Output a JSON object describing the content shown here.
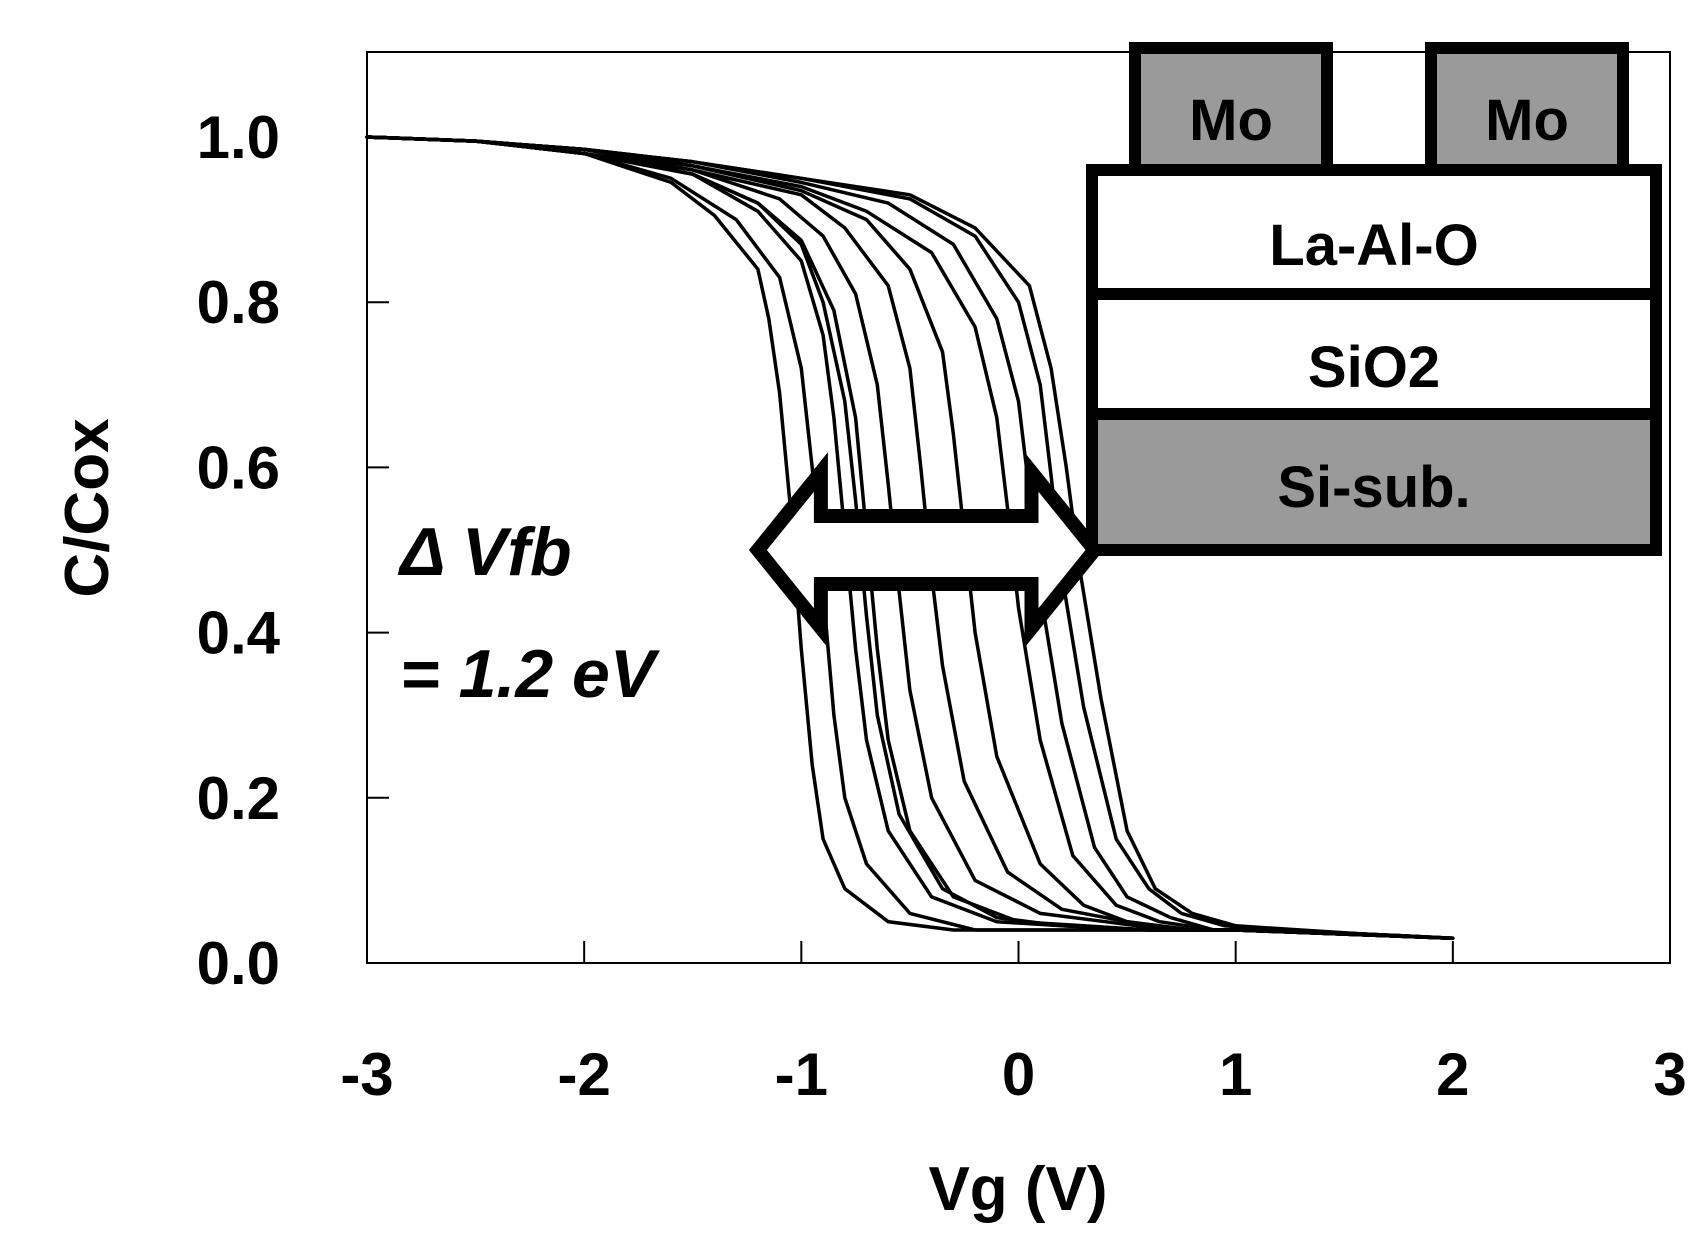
{
  "chart_data": {
    "type": "line",
    "title": "",
    "xlabel": "Vg (V)",
    "ylabel": "C/Cox",
    "xlim": [
      -3,
      3
    ],
    "ylim": [
      0,
      1.1
    ],
    "xticks": [
      "-3",
      "-2",
      "-1",
      "0",
      "1",
      "2",
      "3"
    ],
    "yticks": [
      "0.0",
      "0.2",
      "0.4",
      "0.6",
      "0.8",
      "1.0"
    ],
    "grid": false,
    "legend": "none",
    "annotation": {
      "line1": "Δ Vfb",
      "line2": "= 1.2 eV",
      "arrow_from_x": -1.2,
      "arrow_to_x": 0.35,
      "arrow_y": 0.5
    },
    "inset": {
      "gates": [
        "Mo",
        "Mo"
      ],
      "layers": [
        {
          "label": "La-Al-O",
          "fill": "#ffffff"
        },
        {
          "label": "SiO2",
          "fill": "#ffffff"
        },
        {
          "label": "Si-sub.",
          "fill": "#9a9a9a"
        }
      ],
      "gate_fill": "#9a9a9a"
    },
    "series": [
      {
        "x": [
          -3,
          -2.5,
          -2,
          -1.6,
          -1.4,
          -1.2,
          -1.15,
          -1.1,
          -1.05,
          -1.0,
          -0.95,
          -0.9,
          -0.8,
          -0.6,
          -0.3,
          0,
          0.5,
          1,
          1.5,
          2
        ],
        "y": [
          1.0,
          0.995,
          0.98,
          0.945,
          0.905,
          0.84,
          0.78,
          0.69,
          0.55,
          0.38,
          0.24,
          0.15,
          0.09,
          0.05,
          0.04,
          0.04,
          0.04,
          0.04,
          0.035,
          0.03
        ]
      },
      {
        "x": [
          -3,
          -2.5,
          -2,
          -1.6,
          -1.3,
          -1.1,
          -1.0,
          -0.95,
          -0.9,
          -0.85,
          -0.8,
          -0.7,
          -0.5,
          -0.2,
          0,
          0.5,
          1,
          1.5,
          2
        ],
        "y": [
          1.0,
          0.995,
          0.98,
          0.95,
          0.9,
          0.83,
          0.72,
          0.6,
          0.45,
          0.3,
          0.2,
          0.12,
          0.06,
          0.04,
          0.04,
          0.04,
          0.04,
          0.035,
          0.03
        ]
      },
      {
        "x": [
          -3,
          -2.5,
          -2,
          -1.5,
          -1.2,
          -1.0,
          -0.9,
          -0.85,
          -0.8,
          -0.75,
          -0.7,
          -0.6,
          -0.4,
          -0.1,
          0.2,
          0.6,
          1,
          1.5,
          2
        ],
        "y": [
          1.0,
          0.995,
          0.98,
          0.955,
          0.91,
          0.85,
          0.76,
          0.66,
          0.52,
          0.38,
          0.27,
          0.16,
          0.08,
          0.05,
          0.045,
          0.04,
          0.04,
          0.035,
          0.03
        ]
      },
      {
        "x": [
          -3,
          -2.5,
          -2,
          -1.5,
          -1.2,
          -1.0,
          -0.9,
          -0.8,
          -0.75,
          -0.7,
          -0.65,
          -0.55,
          -0.35,
          -0.1,
          0.2,
          0.6,
          1,
          1.5,
          2
        ],
        "y": [
          1.0,
          0.995,
          0.98,
          0.955,
          0.92,
          0.87,
          0.8,
          0.68,
          0.56,
          0.42,
          0.3,
          0.18,
          0.09,
          0.055,
          0.045,
          0.04,
          0.04,
          0.035,
          0.03
        ]
      },
      {
        "x": [
          -3,
          -2.5,
          -2,
          -1.5,
          -1.2,
          -1.0,
          -0.85,
          -0.75,
          -0.7,
          -0.65,
          -0.6,
          -0.5,
          -0.3,
          0,
          0.3,
          0.6,
          1,
          1.5,
          2
        ],
        "y": [
          1.0,
          0.995,
          0.98,
          0.955,
          0.92,
          0.875,
          0.79,
          0.66,
          0.52,
          0.38,
          0.27,
          0.16,
          0.08,
          0.05,
          0.045,
          0.04,
          0.04,
          0.035,
          0.03
        ]
      },
      {
        "x": [
          -3,
          -2.5,
          -2,
          -1.5,
          -1.1,
          -0.9,
          -0.75,
          -0.65,
          -0.6,
          -0.55,
          -0.5,
          -0.4,
          -0.2,
          0.1,
          0.4,
          0.7,
          1,
          1.5,
          2
        ],
        "y": [
          1.0,
          0.995,
          0.98,
          0.96,
          0.925,
          0.88,
          0.81,
          0.7,
          0.58,
          0.45,
          0.33,
          0.2,
          0.1,
          0.06,
          0.05,
          0.04,
          0.04,
          0.035,
          0.03
        ]
      },
      {
        "x": [
          -3,
          -2.5,
          -2,
          -1.5,
          -1.0,
          -0.8,
          -0.6,
          -0.5,
          -0.45,
          -0.4,
          -0.35,
          -0.25,
          -0.05,
          0.2,
          0.5,
          0.8,
          1,
          1.5,
          2
        ],
        "y": [
          1.0,
          0.995,
          0.985,
          0.96,
          0.93,
          0.89,
          0.82,
          0.72,
          0.6,
          0.47,
          0.36,
          0.22,
          0.11,
          0.065,
          0.05,
          0.04,
          0.04,
          0.035,
          0.03
        ]
      },
      {
        "x": [
          -3,
          -2.5,
          -2,
          -1.5,
          -1.0,
          -0.7,
          -0.5,
          -0.35,
          -0.3,
          -0.25,
          -0.2,
          -0.1,
          0.1,
          0.3,
          0.5,
          0.8,
          1,
          1.5,
          2
        ],
        "y": [
          1.0,
          0.995,
          0.985,
          0.965,
          0.935,
          0.9,
          0.84,
          0.74,
          0.64,
          0.52,
          0.4,
          0.25,
          0.12,
          0.07,
          0.05,
          0.04,
          0.04,
          0.035,
          0.03
        ]
      },
      {
        "x": [
          -3,
          -2.5,
          -2,
          -1.5,
          -1.0,
          -0.7,
          -0.4,
          -0.2,
          -0.1,
          -0.05,
          0,
          0.1,
          0.25,
          0.45,
          0.65,
          0.9,
          1.2,
          1.6,
          2
        ],
        "y": [
          1.0,
          0.995,
          0.985,
          0.965,
          0.94,
          0.91,
          0.86,
          0.77,
          0.66,
          0.55,
          0.43,
          0.27,
          0.13,
          0.07,
          0.05,
          0.04,
          0.04,
          0.035,
          0.03
        ]
      },
      {
        "x": [
          -3,
          -2.5,
          -2,
          -1.5,
          -1.0,
          -0.6,
          -0.3,
          -0.1,
          0,
          0.05,
          0.1,
          0.2,
          0.35,
          0.5,
          0.7,
          0.9,
          1.2,
          1.6,
          2
        ],
        "y": [
          1.0,
          0.995,
          0.985,
          0.97,
          0.945,
          0.92,
          0.87,
          0.78,
          0.68,
          0.57,
          0.45,
          0.29,
          0.14,
          0.08,
          0.055,
          0.04,
          0.04,
          0.035,
          0.03
        ]
      },
      {
        "x": [
          -3,
          -2.5,
          -2,
          -1.5,
          -1.0,
          -0.5,
          -0.2,
          0,
          0.1,
          0.15,
          0.2,
          0.3,
          0.45,
          0.6,
          0.75,
          0.95,
          1.2,
          1.6,
          2
        ],
        "y": [
          1.0,
          0.995,
          0.985,
          0.97,
          0.95,
          0.925,
          0.88,
          0.8,
          0.7,
          0.59,
          0.47,
          0.31,
          0.15,
          0.09,
          0.06,
          0.045,
          0.04,
          0.035,
          0.03
        ]
      },
      {
        "x": [
          -3,
          -2.5,
          -2,
          -1.5,
          -1.0,
          -0.5,
          -0.2,
          0.05,
          0.15,
          0.22,
          0.28,
          0.38,
          0.5,
          0.63,
          0.8,
          1.0,
          1.3,
          1.6,
          2
        ],
        "y": [
          1.0,
          0.995,
          0.985,
          0.97,
          0.95,
          0.93,
          0.89,
          0.82,
          0.72,
          0.6,
          0.48,
          0.32,
          0.16,
          0.09,
          0.06,
          0.045,
          0.04,
          0.035,
          0.03
        ]
      }
    ]
  }
}
